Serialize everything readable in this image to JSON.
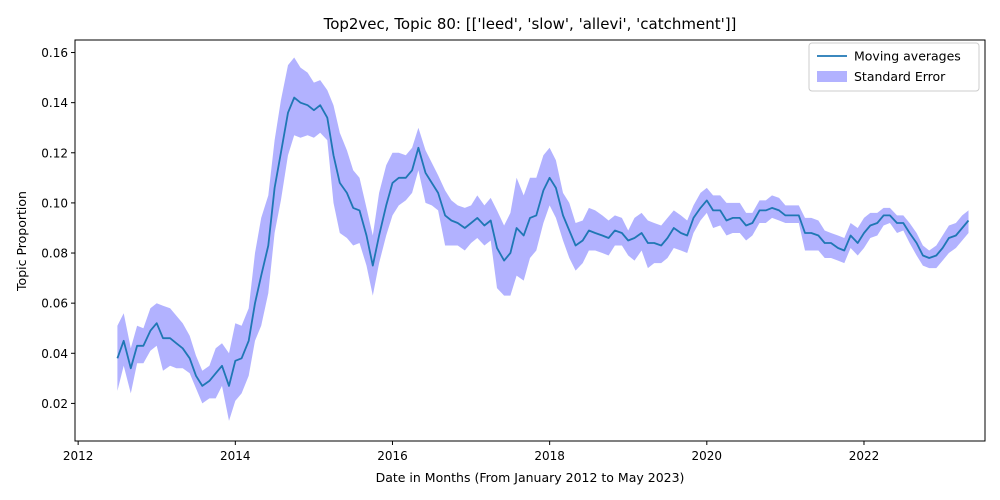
{
  "chart_data": {
    "type": "line",
    "title": "Top2vec, Topic 80: [['leed', 'slow', 'allevi', 'catchment']]",
    "xlabel": "Date in Months (From January 2012 to May 2023)",
    "ylabel": "Topic Proportion",
    "xlim": [
      2011.96,
      2023.54
    ],
    "ylim": [
      0.005,
      0.165
    ],
    "xticks": [
      2012,
      2014,
      2016,
      2018,
      2020,
      2022
    ],
    "xtick_labels": [
      "2012",
      "2014",
      "2016",
      "2018",
      "2020",
      "2022"
    ],
    "yticks": [
      0.02,
      0.04,
      0.06,
      0.08,
      0.1,
      0.12,
      0.14,
      0.16
    ],
    "ytick_labels": [
      "0.02",
      "0.04",
      "0.06",
      "0.08",
      "0.10",
      "0.12",
      "0.14",
      "0.16"
    ],
    "grid": false,
    "legend_position": "top-right",
    "series": [
      {
        "name": "Moving averages",
        "kind": "line",
        "color": "#1f77b4",
        "x": [
          2012.5,
          2012.58,
          2012.67,
          2012.75,
          2012.83,
          2012.92,
          2013.0,
          2013.08,
          2013.17,
          2013.25,
          2013.33,
          2013.42,
          2013.5,
          2013.58,
          2013.67,
          2013.75,
          2013.83,
          2013.92,
          2014.0,
          2014.08,
          2014.17,
          2014.25,
          2014.33,
          2014.42,
          2014.5,
          2014.58,
          2014.67,
          2014.75,
          2014.83,
          2014.92,
          2015.0,
          2015.08,
          2015.17,
          2015.25,
          2015.33,
          2015.42,
          2015.5,
          2015.58,
          2015.67,
          2015.75,
          2015.83,
          2015.92,
          2016.0,
          2016.08,
          2016.17,
          2016.25,
          2016.33,
          2016.42,
          2016.5,
          2016.58,
          2016.67,
          2016.75,
          2016.83,
          2016.92,
          2017.0,
          2017.08,
          2017.17,
          2017.25,
          2017.33,
          2017.42,
          2017.5,
          2017.58,
          2017.67,
          2017.75,
          2017.83,
          2017.92,
          2018.0,
          2018.08,
          2018.17,
          2018.25,
          2018.33,
          2018.42,
          2018.5,
          2018.58,
          2018.67,
          2018.75,
          2018.83,
          2018.92,
          2019.0,
          2019.08,
          2019.17,
          2019.25,
          2019.33,
          2019.42,
          2019.5,
          2019.58,
          2019.67,
          2019.75,
          2019.83,
          2019.92,
          2020.0,
          2020.08,
          2020.17,
          2020.25,
          2020.33,
          2020.42,
          2020.5,
          2020.58,
          2020.67,
          2020.75,
          2020.83,
          2020.92,
          2021.0,
          2021.08,
          2021.17,
          2021.25,
          2021.33,
          2021.42,
          2021.5,
          2021.58,
          2021.67,
          2021.75,
          2021.83,
          2021.92,
          2022.0,
          2022.08,
          2022.17,
          2022.25,
          2022.33,
          2022.42,
          2022.5,
          2022.58,
          2022.67,
          2022.75,
          2022.83,
          2022.92,
          2023.0,
          2023.08,
          2023.17,
          2023.25,
          2023.33
        ],
        "y": [
          0.038,
          0.045,
          0.034,
          0.043,
          0.043,
          0.049,
          0.052,
          0.046,
          0.046,
          0.044,
          0.042,
          0.038,
          0.031,
          0.027,
          0.029,
          0.032,
          0.035,
          0.027,
          0.037,
          0.038,
          0.045,
          0.06,
          0.071,
          0.083,
          0.106,
          0.12,
          0.136,
          0.142,
          0.14,
          0.139,
          0.137,
          0.139,
          0.134,
          0.119,
          0.108,
          0.104,
          0.098,
          0.097,
          0.087,
          0.075,
          0.087,
          0.099,
          0.108,
          0.11,
          0.11,
          0.113,
          0.122,
          0.112,
          0.108,
          0.104,
          0.095,
          0.093,
          0.092,
          0.09,
          0.092,
          0.094,
          0.091,
          0.093,
          0.082,
          0.077,
          0.08,
          0.09,
          0.087,
          0.094,
          0.095,
          0.105,
          0.11,
          0.106,
          0.095,
          0.089,
          0.083,
          0.085,
          0.089,
          0.088,
          0.087,
          0.086,
          0.089,
          0.088,
          0.085,
          0.086,
          0.088,
          0.084,
          0.084,
          0.083,
          0.086,
          0.09,
          0.088,
          0.087,
          0.094,
          0.098,
          0.101,
          0.097,
          0.097,
          0.093,
          0.094,
          0.094,
          0.091,
          0.092,
          0.097,
          0.097,
          0.098,
          0.097,
          0.095,
          0.095,
          0.095,
          0.088,
          0.088,
          0.087,
          0.084,
          0.084,
          0.082,
          0.081,
          0.087,
          0.084,
          0.088,
          0.091,
          0.092,
          0.095,
          0.095,
          0.092,
          0.092,
          0.088,
          0.084,
          0.079,
          0.078,
          0.079,
          0.082,
          0.086,
          0.087,
          0.09,
          0.093
        ]
      },
      {
        "name": "Standard Error",
        "kind": "band",
        "color": "#0000ff",
        "opacity": 0.3,
        "x": [
          2012.5,
          2012.58,
          2012.67,
          2012.75,
          2012.83,
          2012.92,
          2013.0,
          2013.08,
          2013.17,
          2013.25,
          2013.33,
          2013.42,
          2013.5,
          2013.58,
          2013.67,
          2013.75,
          2013.83,
          2013.92,
          2014.0,
          2014.08,
          2014.17,
          2014.25,
          2014.33,
          2014.42,
          2014.5,
          2014.58,
          2014.67,
          2014.75,
          2014.83,
          2014.92,
          2015.0,
          2015.08,
          2015.17,
          2015.25,
          2015.33,
          2015.42,
          2015.5,
          2015.58,
          2015.67,
          2015.75,
          2015.83,
          2015.92,
          2016.0,
          2016.08,
          2016.17,
          2016.25,
          2016.33,
          2016.42,
          2016.5,
          2016.58,
          2016.67,
          2016.75,
          2016.83,
          2016.92,
          2017.0,
          2017.08,
          2017.17,
          2017.25,
          2017.33,
          2017.42,
          2017.5,
          2017.58,
          2017.67,
          2017.75,
          2017.83,
          2017.92,
          2018.0,
          2018.08,
          2018.17,
          2018.25,
          2018.33,
          2018.42,
          2018.5,
          2018.58,
          2018.67,
          2018.75,
          2018.83,
          2018.92,
          2019.0,
          2019.08,
          2019.17,
          2019.25,
          2019.33,
          2019.42,
          2019.5,
          2019.58,
          2019.67,
          2019.75,
          2019.83,
          2019.92,
          2020.0,
          2020.08,
          2020.17,
          2020.25,
          2020.33,
          2020.42,
          2020.5,
          2020.58,
          2020.67,
          2020.75,
          2020.83,
          2020.92,
          2021.0,
          2021.08,
          2021.17,
          2021.25,
          2021.33,
          2021.42,
          2021.5,
          2021.58,
          2021.67,
          2021.75,
          2021.83,
          2021.92,
          2022.0,
          2022.08,
          2022.17,
          2022.25,
          2022.33,
          2022.42,
          2022.5,
          2022.58,
          2022.67,
          2022.75,
          2022.83,
          2022.92,
          2023.0,
          2023.08,
          2023.17,
          2023.25,
          2023.33
        ],
        "upper": [
          0.051,
          0.056,
          0.042,
          0.051,
          0.05,
          0.058,
          0.06,
          0.059,
          0.058,
          0.055,
          0.052,
          0.047,
          0.039,
          0.033,
          0.035,
          0.042,
          0.044,
          0.04,
          0.052,
          0.051,
          0.058,
          0.08,
          0.094,
          0.103,
          0.125,
          0.141,
          0.155,
          0.158,
          0.154,
          0.152,
          0.148,
          0.149,
          0.145,
          0.139,
          0.128,
          0.121,
          0.113,
          0.11,
          0.098,
          0.087,
          0.104,
          0.115,
          0.12,
          0.12,
          0.119,
          0.122,
          0.13,
          0.121,
          0.116,
          0.111,
          0.105,
          0.101,
          0.099,
          0.098,
          0.099,
          0.103,
          0.099,
          0.102,
          0.097,
          0.091,
          0.096,
          0.11,
          0.103,
          0.11,
          0.11,
          0.119,
          0.122,
          0.117,
          0.104,
          0.1,
          0.092,
          0.093,
          0.098,
          0.097,
          0.095,
          0.093,
          0.095,
          0.094,
          0.089,
          0.094,
          0.096,
          0.093,
          0.092,
          0.091,
          0.094,
          0.097,
          0.095,
          0.093,
          0.099,
          0.104,
          0.106,
          0.103,
          0.103,
          0.1,
          0.1,
          0.1,
          0.096,
          0.096,
          0.101,
          0.101,
          0.103,
          0.102,
          0.099,
          0.099,
          0.099,
          0.094,
          0.094,
          0.093,
          0.089,
          0.088,
          0.087,
          0.086,
          0.092,
          0.09,
          0.094,
          0.096,
          0.096,
          0.098,
          0.098,
          0.095,
          0.095,
          0.092,
          0.088,
          0.083,
          0.081,
          0.083,
          0.087,
          0.091,
          0.092,
          0.095,
          0.097
        ],
        "lower": [
          0.025,
          0.035,
          0.024,
          0.036,
          0.036,
          0.041,
          0.043,
          0.033,
          0.035,
          0.034,
          0.034,
          0.032,
          0.026,
          0.02,
          0.022,
          0.022,
          0.027,
          0.013,
          0.021,
          0.024,
          0.031,
          0.045,
          0.051,
          0.064,
          0.088,
          0.101,
          0.119,
          0.127,
          0.126,
          0.127,
          0.126,
          0.128,
          0.125,
          0.1,
          0.088,
          0.086,
          0.083,
          0.084,
          0.075,
          0.063,
          0.076,
          0.087,
          0.095,
          0.099,
          0.101,
          0.104,
          0.113,
          0.1,
          0.099,
          0.097,
          0.083,
          0.083,
          0.083,
          0.081,
          0.084,
          0.086,
          0.083,
          0.085,
          0.066,
          0.063,
          0.063,
          0.071,
          0.069,
          0.078,
          0.081,
          0.092,
          0.099,
          0.094,
          0.085,
          0.078,
          0.073,
          0.076,
          0.081,
          0.081,
          0.08,
          0.079,
          0.083,
          0.083,
          0.079,
          0.077,
          0.081,
          0.074,
          0.076,
          0.076,
          0.078,
          0.082,
          0.081,
          0.08,
          0.088,
          0.093,
          0.096,
          0.09,
          0.091,
          0.087,
          0.088,
          0.088,
          0.085,
          0.087,
          0.092,
          0.092,
          0.094,
          0.093,
          0.092,
          0.092,
          0.092,
          0.081,
          0.081,
          0.081,
          0.078,
          0.078,
          0.077,
          0.076,
          0.082,
          0.079,
          0.082,
          0.086,
          0.087,
          0.091,
          0.092,
          0.088,
          0.089,
          0.084,
          0.079,
          0.075,
          0.074,
          0.074,
          0.077,
          0.08,
          0.082,
          0.085,
          0.088
        ]
      }
    ]
  }
}
